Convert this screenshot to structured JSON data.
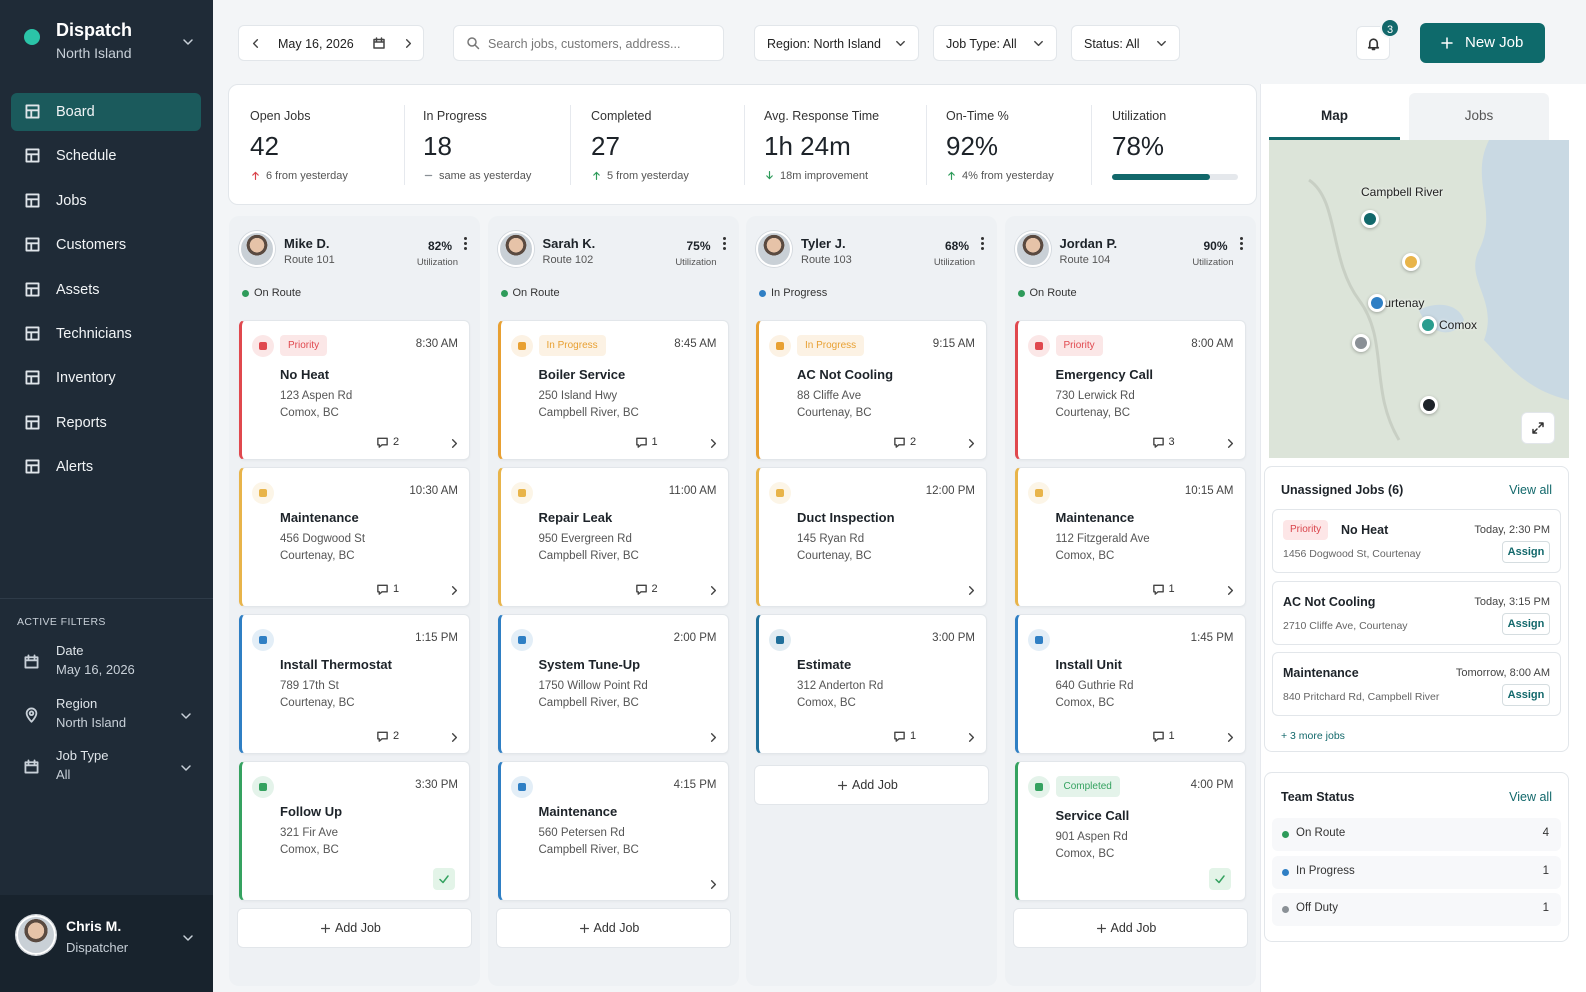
{
  "sidebar": {
    "title": "Dispatch",
    "subtitle": "North Island",
    "nav": [
      "Board",
      "Schedule",
      "Jobs",
      "Customers",
      "Assets",
      "Technicians",
      "Inventory",
      "Reports",
      "Alerts"
    ],
    "filters_title": "ACTIVE FILTERS",
    "filters": [
      {
        "label": "Date",
        "value": "May 16, 2026"
      },
      {
        "label": "Region",
        "value": "North Island"
      },
      {
        "label": "Job Type",
        "value": "All"
      }
    ],
    "user": {
      "name": "Chris M.",
      "role": "Dispatcher"
    }
  },
  "topbar": {
    "date": "May 16, 2026",
    "search_placeholder": "Search jobs, customers, address...",
    "filters": [
      "Region: North Island",
      "Job Type: All",
      "Status: All"
    ],
    "notifications": "3",
    "new_job": "New Job"
  },
  "kpis": [
    {
      "label": "Open Jobs",
      "value": "42",
      "delta": "6 from yesterday",
      "trend": "up",
      "color": "#d9434a"
    },
    {
      "label": "In Progress",
      "value": "18",
      "delta": "same as yesterday",
      "trend": "flat",
      "color": "#8a9096"
    },
    {
      "label": "Completed",
      "value": "27",
      "delta": "5 from yesterday",
      "trend": "up",
      "color": "#2e9b5a"
    },
    {
      "label": "Avg. Response Time",
      "value": "1h 24m",
      "delta": "18m improvement",
      "trend": "down",
      "color": "#2e9b5a"
    },
    {
      "label": "On-Time %",
      "value": "92%",
      "delta": "4% from yesterday",
      "trend": "up",
      "color": "#2e9b5a"
    },
    {
      "label": "Utilization",
      "value": "78%",
      "color": "#12686b"
    }
  ],
  "utilization_label": "Utilization",
  "add_job": "Add Job",
  "technicians": [
    {
      "name": "Mike D.",
      "route": "Route 101",
      "utilization": "82%",
      "status": "On Route",
      "status_color": "#2e9b5a",
      "jobs": [
        {
          "tag": "Priority",
          "time": "8:30 AM",
          "title": "No Heat",
          "address": [
            "123 Aspen Rd",
            "Comox, BC"
          ],
          "comments": "2",
          "color": "#e0484e"
        },
        {
          "time": "10:30 AM",
          "title": "Maintenance",
          "address": [
            "456 Dogwood St",
            "Courtenay, BC"
          ],
          "comments": "1",
          "color": "#e8b44a"
        },
        {
          "time": "1:15 PM",
          "title": "Install Thermostat",
          "address": [
            "789 17th St",
            "Courtenay, BC"
          ],
          "comments": "2",
          "color": "#2f7fc4"
        },
        {
          "time": "3:30 PM",
          "title": "Follow Up",
          "address": [
            "321 Fir Ave",
            "Comox, BC"
          ],
          "check": true,
          "color": "#35a260"
        }
      ]
    },
    {
      "name": "Sarah K.",
      "route": "Route 102",
      "utilization": "75%",
      "status": "On Route",
      "status_color": "#2e9b5a",
      "jobs": [
        {
          "tag": "In Progress",
          "time": "8:45 AM",
          "title": "Boiler Service",
          "address": [
            "250 Island Hwy",
            "Campbell River, BC"
          ],
          "comments": "1",
          "color": "#e8a032"
        },
        {
          "time": "11:00 AM",
          "title": "Repair Leak",
          "address": [
            "950 Evergreen Rd",
            "Campbell River, BC"
          ],
          "comments": "2",
          "color": "#e8b44a"
        },
        {
          "time": "2:00 PM",
          "title": "System Tune-Up",
          "address": [
            "1750 Willow Point Rd",
            "Campbell River, BC"
          ],
          "color": "#2f7fc4"
        },
        {
          "time": "4:15 PM",
          "title": "Maintenance",
          "address": [
            "560 Petersen Rd",
            "Campbell River, BC"
          ],
          "color": "#2f7fc4"
        }
      ]
    },
    {
      "name": "Tyler J.",
      "route": "Route 103",
      "utilization": "68%",
      "status": "In Progress",
      "status_color": "#2f7fc4",
      "jobs": [
        {
          "tag": "In Progress",
          "time": "9:15 AM",
          "title": "AC Not Cooling",
          "address": [
            "88 Cliffe Ave",
            "Courtenay, BC"
          ],
          "comments": "2",
          "color": "#e8a032"
        },
        {
          "time": "12:00 PM",
          "title": "Duct Inspection",
          "address": [
            "145 Ryan Rd",
            "Courtenay, BC"
          ],
          "color": "#e8b44a"
        },
        {
          "time": "3:00 PM",
          "title": "Estimate",
          "address": [
            "312 Anderton Rd",
            "Comox, BC"
          ],
          "comments": "1",
          "color": "#1f6f9a"
        }
      ]
    },
    {
      "name": "Jordan P.",
      "route": "Route 104",
      "utilization": "90%",
      "status": "On Route",
      "status_color": "#2e9b5a",
      "jobs": [
        {
          "tag": "Priority",
          "time": "8:00 AM",
          "title": "Emergency Call",
          "address": [
            "730 Lerwick Rd",
            "Courtenay, BC"
          ],
          "comments": "3",
          "color": "#e0484e"
        },
        {
          "time": "10:15 AM",
          "title": "Maintenance",
          "address": [
            "112 Fitzgerald Ave",
            "Comox, BC"
          ],
          "comments": "1",
          "color": "#e8b44a"
        },
        {
          "time": "1:45 PM",
          "title": "Install Unit",
          "address": [
            "640 Guthrie Rd",
            "Comox, BC"
          ],
          "comments": "1",
          "color": "#2f7fc4"
        },
        {
          "tag": "Completed",
          "time": "4:00 PM",
          "title": "Service Call",
          "address": [
            "901 Aspen Rd",
            "Comox, BC"
          ],
          "check": true,
          "color": "#35a260"
        }
      ]
    }
  ],
  "right_panel": {
    "tabs": [
      "Map",
      "Jobs"
    ],
    "map_labels": [
      "Campbell River",
      "Courtenay",
      "Comox"
    ],
    "unassigned": {
      "title": "Unassigned Jobs (6)",
      "view_all": "View all",
      "items": [
        {
          "tag": "Priority",
          "title": "No Heat",
          "time": "Today, 2:30 PM",
          "address": "1456 Dogwood St, Courtenay",
          "action": "Assign"
        },
        {
          "title": "AC Not Cooling",
          "time": "Today, 3:15 PM",
          "address": "2710 Cliffe Ave, Courtenay",
          "action": "Assign"
        },
        {
          "title": "Maintenance",
          "time": "Tomorrow, 8:00 AM",
          "address": "840 Pritchard Rd, Campbell River",
          "action": "Assign"
        }
      ],
      "more": "+ 3 more jobs"
    },
    "team_status": {
      "title": "Team Status",
      "view_all": "View all",
      "items": [
        {
          "label": "On Route",
          "count": "4",
          "color": "#2e9b5a"
        },
        {
          "label": "In Progress",
          "count": "1",
          "color": "#2f7fc4"
        },
        {
          "label": "Off Duty",
          "count": "1",
          "color": "#8a9096"
        }
      ]
    }
  }
}
